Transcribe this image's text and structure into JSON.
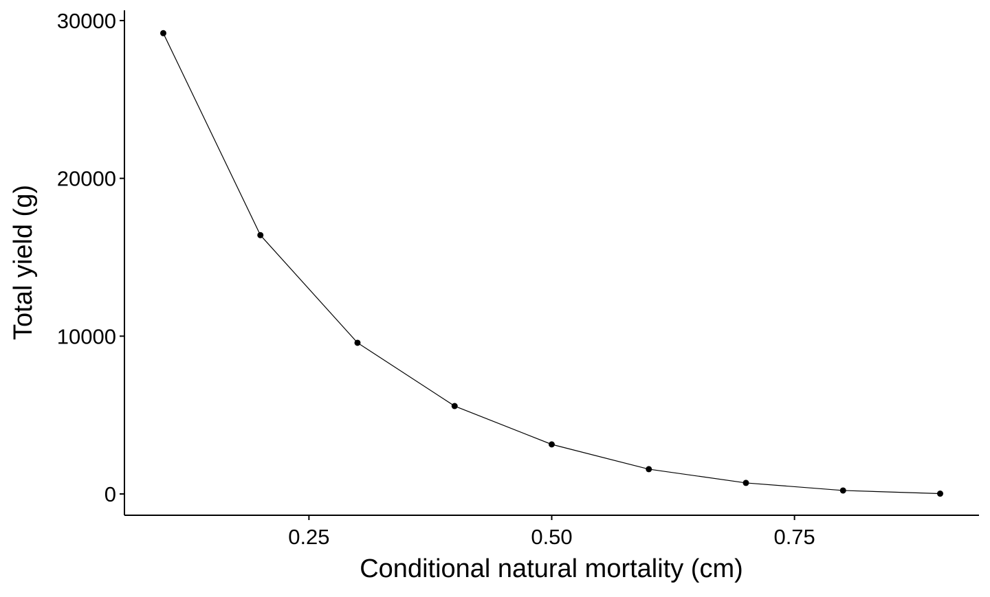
{
  "chart_data": {
    "type": "line",
    "title": "",
    "xlabel": "Conditional natural mortality (cm)",
    "ylabel": "Total yield (g)",
    "x": [
      0.1,
      0.2,
      0.3,
      0.4,
      0.5,
      0.6,
      0.7,
      0.8,
      0.9
    ],
    "series": [
      {
        "name": "Total yield",
        "values": [
          29200,
          16400,
          9580,
          5570,
          3140,
          1570,
          700,
          220,
          20
        ],
        "color": "#000000"
      }
    ],
    "xlim": [
      0.06,
      0.94
    ],
    "ylim": [
      -1350,
      30650
    ],
    "xticks": [
      0.25,
      0.5,
      0.75
    ],
    "xtick_labels": [
      "0.25",
      "0.50",
      "0.75"
    ],
    "yticks": [
      0,
      10000,
      20000,
      30000
    ],
    "ytick_labels": [
      "0",
      "10000",
      "20000",
      "30000"
    ],
    "grid": false,
    "legend": "none"
  }
}
